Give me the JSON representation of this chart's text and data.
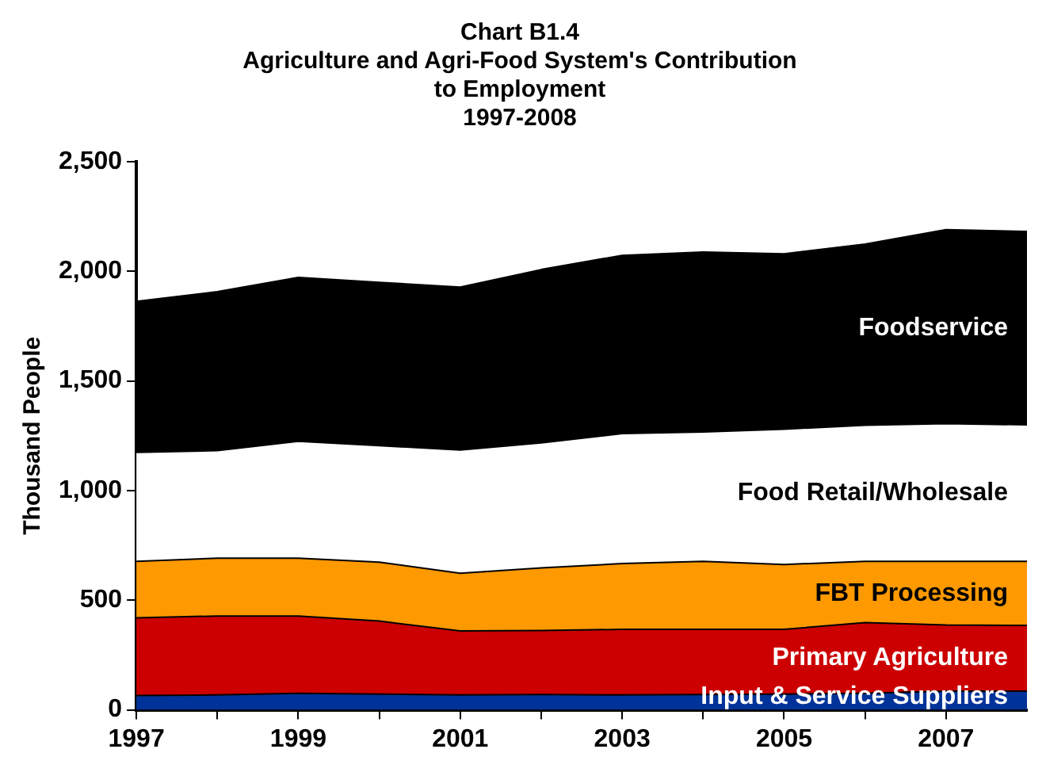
{
  "chart_data": {
    "type": "area",
    "title": "Chart B1.4\nAgriculture and Agri-Food System's Contribution\nto Employment\n1997-2008",
    "ylabel": "Thousand People",
    "stacked": true,
    "x": [
      1997,
      1998,
      1999,
      2000,
      2001,
      2002,
      2003,
      2004,
      2005,
      2006,
      2007,
      2008
    ],
    "series": [
      {
        "name": "Input & Service Suppliers",
        "color": "#003399",
        "values": [
          65,
          68,
          75,
          72,
          68,
          70,
          68,
          70,
          72,
          75,
          85,
          85
        ]
      },
      {
        "name": "Primary Agriculture",
        "color": "#cc0000",
        "values": [
          355,
          360,
          353,
          333,
          292,
          292,
          299,
          297,
          295,
          323,
          302,
          300
        ]
      },
      {
        "name": "FBT Processing",
        "color": "#ff9900",
        "values": [
          257,
          264,
          264,
          269,
          263,
          285,
          300,
          310,
          296,
          279,
          290,
          292
        ]
      },
      {
        "name": "Food Retail/Wholesale",
        "color": "#ffffff",
        "values": [
          497,
          490,
          533,
          531,
          562,
          571,
          593,
          590,
          617,
          621,
          628,
          623
        ]
      },
      {
        "name": "Foodservice",
        "color": "#000000",
        "values": [
          689,
          725,
          747,
          745,
          743,
          790,
          813,
          821,
          800,
          826,
          885,
          882
        ]
      }
    ],
    "xlim": [
      1997,
      2008
    ],
    "xticks": [
      1997,
      {
        "value": 1998,
        "label": null
      },
      1999,
      {
        "value": 2000,
        "label": null
      },
      2001,
      {
        "value": 2002,
        "label": null
      },
      2003,
      {
        "value": 2004,
        "label": null
      },
      2005,
      {
        "value": 2006,
        "label": null
      },
      2007
    ],
    "ylim": [
      0,
      2500
    ],
    "yticks": [
      0,
      500,
      {
        "value": 1000,
        "label": "1,000"
      },
      {
        "value": 1500,
        "label": "1,500"
      },
      {
        "value": 2000,
        "label": "2,000"
      },
      {
        "value": 2500,
        "label": "2,500"
      }
    ],
    "grid": false,
    "legend": false
  }
}
